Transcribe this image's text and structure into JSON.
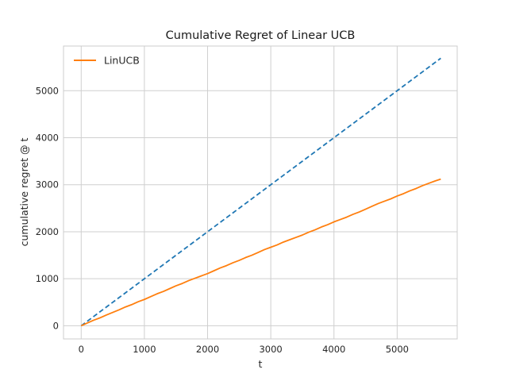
{
  "chart_data": {
    "type": "line",
    "title": "Cumulative Regret of Linear UCB",
    "xlabel": "t",
    "ylabel": "cumulative regret @ t",
    "xlim": [
      -280,
      5950
    ],
    "ylim": [
      -280,
      5950
    ],
    "x_ticks": [
      0,
      1000,
      2000,
      3000,
      4000,
      5000
    ],
    "y_ticks": [
      0,
      1000,
      2000,
      3000,
      4000,
      5000
    ],
    "grid": true,
    "legend_position": "top-left",
    "series": [
      {
        "name": "LinUCB",
        "color": "#ff7f0e",
        "style": "solid",
        "x": [
          0,
          100,
          200,
          300,
          400,
          500,
          600,
          700,
          800,
          900,
          1000,
          1100,
          1200,
          1300,
          1400,
          1500,
          1600,
          1700,
          1800,
          1900,
          2000,
          2100,
          2200,
          2300,
          2400,
          2500,
          2600,
          2700,
          2800,
          2900,
          3000,
          3100,
          3200,
          3300,
          3400,
          3500,
          3600,
          3700,
          3800,
          3900,
          4000,
          4100,
          4200,
          4300,
          4400,
          4500,
          4600,
          4700,
          4800,
          4900,
          5000,
          5100,
          5200,
          5300,
          5400,
          5500,
          5600,
          5690
        ],
        "values": [
          0,
          60,
          120,
          170,
          230,
          285,
          340,
          400,
          450,
          510,
          560,
          620,
          680,
          730,
          790,
          850,
          900,
          960,
          1010,
          1060,
          1110,
          1170,
          1230,
          1280,
          1340,
          1390,
          1450,
          1500,
          1560,
          1620,
          1670,
          1720,
          1780,
          1830,
          1880,
          1930,
          1990,
          2040,
          2100,
          2150,
          2210,
          2260,
          2310,
          2370,
          2420,
          2480,
          2540,
          2600,
          2650,
          2700,
          2760,
          2810,
          2870,
          2920,
          2980,
          3030,
          3080,
          3120
        ]
      },
      {
        "name": "",
        "color": "#1f77b4",
        "style": "dashed",
        "x": [
          0,
          5690
        ],
        "values": [
          0,
          5690
        ]
      }
    ]
  }
}
